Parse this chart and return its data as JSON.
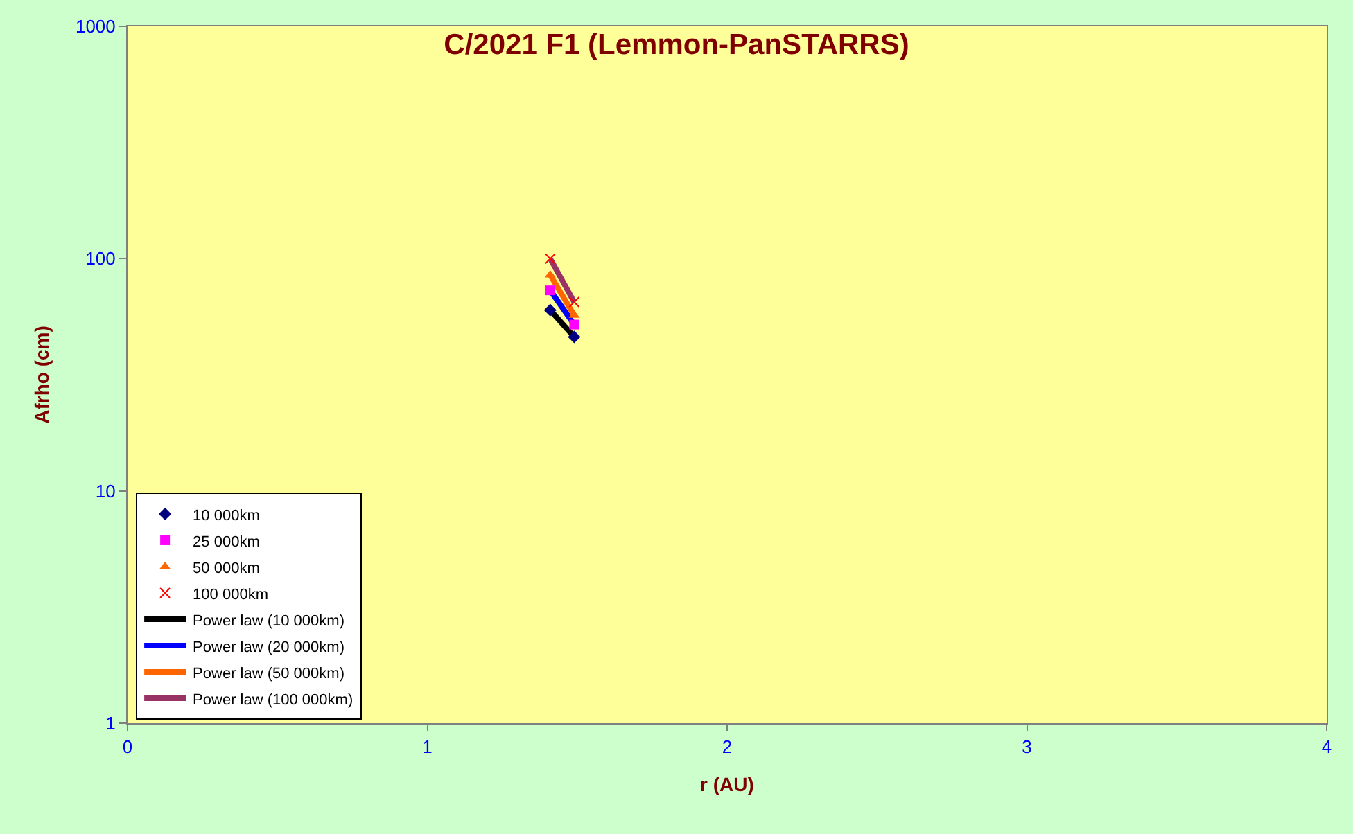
{
  "chart_data": {
    "type": "scatter",
    "title": "C/2021 F1 (Lemmon-PanSTARRS)",
    "xlabel": "r (AU)",
    "ylabel": "Afrho (cm)",
    "x": [
      1.41,
      1.49
    ],
    "xlim": [
      0,
      4
    ],
    "xticks": [
      0,
      1,
      2,
      3,
      4
    ],
    "ylim": [
      1,
      1000
    ],
    "yticks": [
      1,
      10,
      100,
      1000
    ],
    "log": "y",
    "grid": false,
    "legend": "bottom left",
    "series": [
      {
        "name": "10 000km",
        "marker": "diamond",
        "color": "#000080",
        "values": [
          60,
          46
        ]
      },
      {
        "name": "25 000km",
        "marker": "square",
        "color": "#ff00ff",
        "values": [
          73,
          52
        ]
      },
      {
        "name": "50 000km",
        "marker": "triangle",
        "color": "#ff6600",
        "values": [
          85,
          57
        ]
      },
      {
        "name": "100 000km",
        "marker": "cross",
        "color": "#ff0000",
        "values": [
          100,
          65
        ]
      },
      {
        "name": "Power law (10 000km)",
        "type": "line",
        "marker": "none",
        "line_style": "solid",
        "color": "#000000",
        "values": [
          60,
          46
        ]
      },
      {
        "name": "Power law (20 000km)",
        "type": "line",
        "marker": "none",
        "line_style": "solid",
        "color": "#0000ff",
        "values": [
          73,
          52
        ]
      },
      {
        "name": "Power law (50 000km)",
        "type": "line",
        "marker": "none",
        "line_style": "solid",
        "color": "#ff6600",
        "values": [
          85,
          57
        ]
      },
      {
        "name": "Power law (100 000km)",
        "type": "line",
        "marker": "none",
        "line_style": "solid",
        "color": "#993366",
        "values": [
          100,
          65
        ]
      }
    ]
  }
}
